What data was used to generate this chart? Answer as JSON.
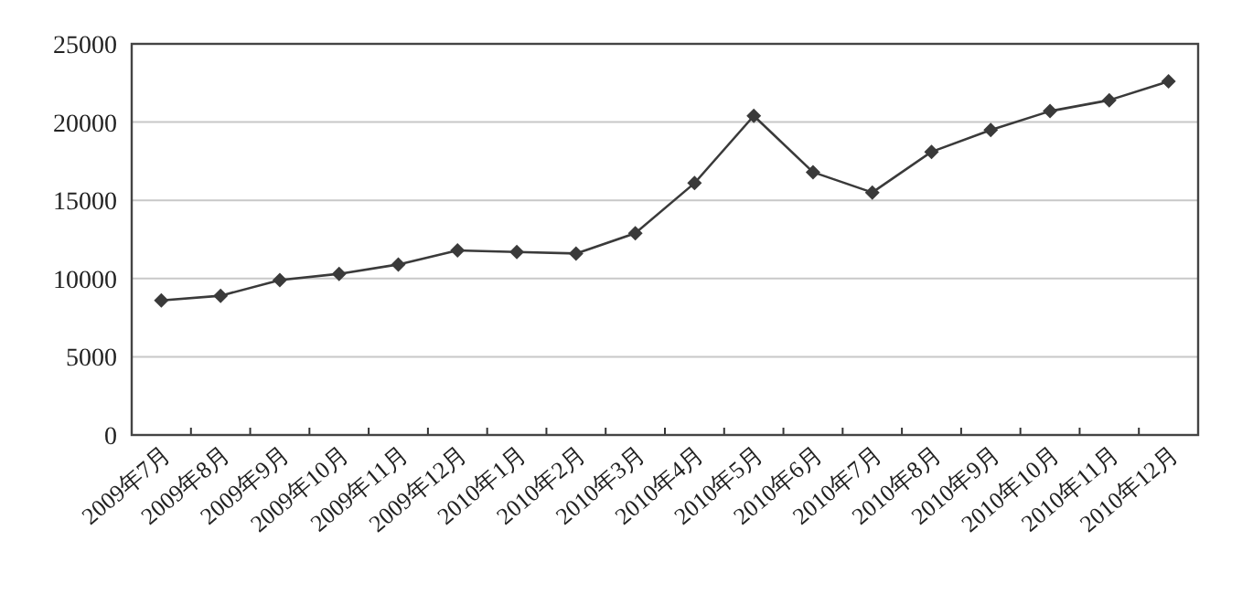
{
  "chart_data": {
    "type": "line",
    "categories": [
      "2009年7月",
      "2009年8月",
      "2009年9月",
      "2009年10月",
      "2009年11月",
      "2009年12月",
      "2010年1月",
      "2010年2月",
      "2010年3月",
      "2010年4月",
      "2010年5月",
      "2010年6月",
      "2010年7月",
      "2010年8月",
      "2010年9月",
      "2010年10月",
      "2010年11月",
      "2010年12月"
    ],
    "series": [
      {
        "color": "#3a3a3a",
        "values": [
          8600,
          8900,
          9900,
          10300,
          10900,
          11800,
          11700,
          11600,
          12900,
          16100,
          20400,
          16800,
          15500,
          18100,
          19500,
          20700,
          21400,
          22600
        ]
      }
    ],
    "ylim": [
      0,
      25000
    ],
    "yticks": [
      0,
      5000,
      10000,
      15000,
      20000,
      25000
    ],
    "grid": "y",
    "marker": "diamond",
    "line_style": "solid"
  }
}
